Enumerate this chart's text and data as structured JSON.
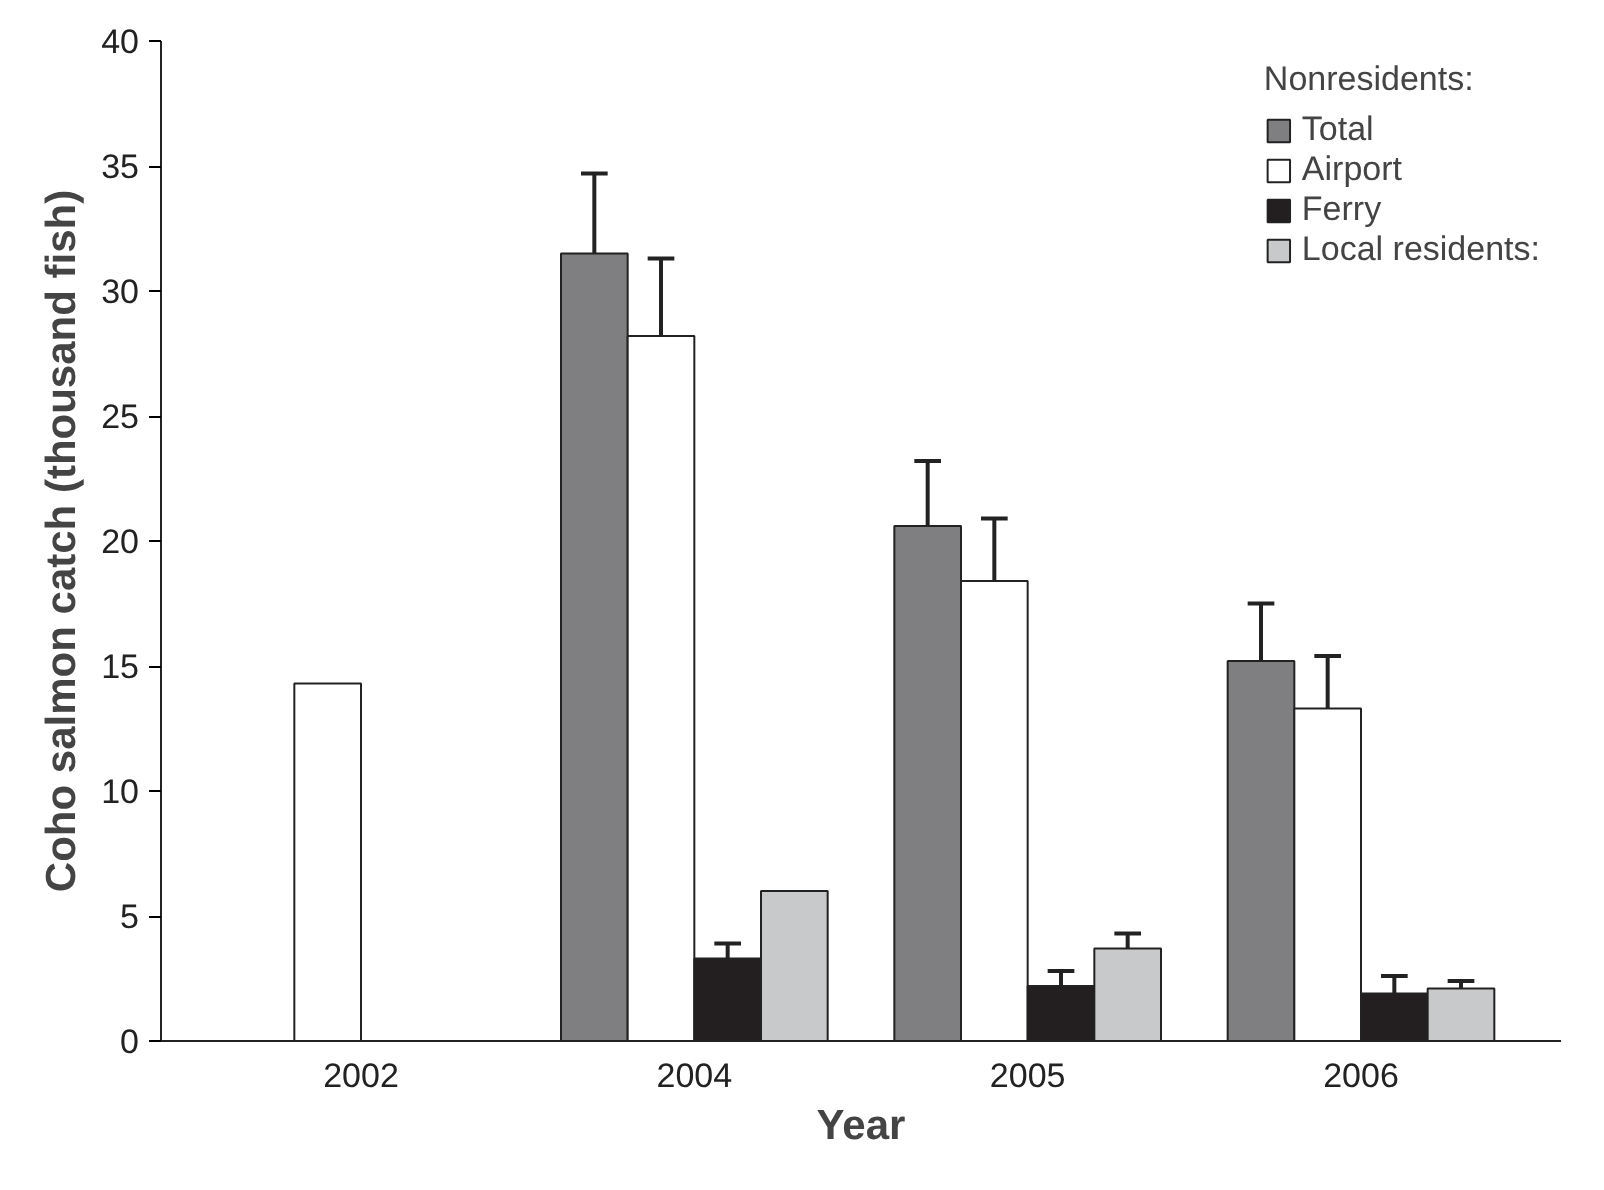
{
  "chart_data": {
    "type": "bar",
    "xlabel": "Year",
    "ylabel": "Coho salmon catch (thousand fish)",
    "legend_title": "Nonresidents:",
    "categories": [
      "2002",
      "2004",
      "2005",
      "2006"
    ],
    "series": [
      {
        "name": "Total",
        "color": "#7f7f82",
        "values": [
          null,
          31.5,
          20.6,
          15.2
        ],
        "errors": [
          null,
          [
            31.5,
            34.7
          ],
          [
            20.6,
            23.2
          ],
          [
            15.2,
            17.5
          ]
        ]
      },
      {
        "name": "Airport",
        "color": "#ffffff",
        "values": [
          14.3,
          28.2,
          18.4,
          13.3
        ],
        "errors": [
          null,
          [
            28.2,
            31.3
          ],
          [
            18.4,
            20.9
          ],
          [
            13.3,
            15.4
          ]
        ]
      },
      {
        "name": "Ferry",
        "color": "#231f20",
        "values": [
          null,
          3.3,
          2.2,
          1.9
        ],
        "errors": [
          null,
          [
            3.3,
            3.9
          ],
          [
            2.2,
            2.8
          ],
          [
            1.9,
            2.6
          ]
        ]
      },
      {
        "name": "Local residents:",
        "color": "#c8c9cb",
        "values": [
          null,
          6.0,
          3.7,
          2.1
        ],
        "errors": [
          null,
          null,
          [
            3.7,
            4.3
          ],
          [
            2.1,
            2.4
          ]
        ]
      }
    ],
    "ylim": [
      0,
      40
    ],
    "yticks": [
      0,
      5,
      10,
      15,
      20,
      25,
      30,
      35,
      40
    ],
    "grid": false,
    "legend": "top right"
  }
}
